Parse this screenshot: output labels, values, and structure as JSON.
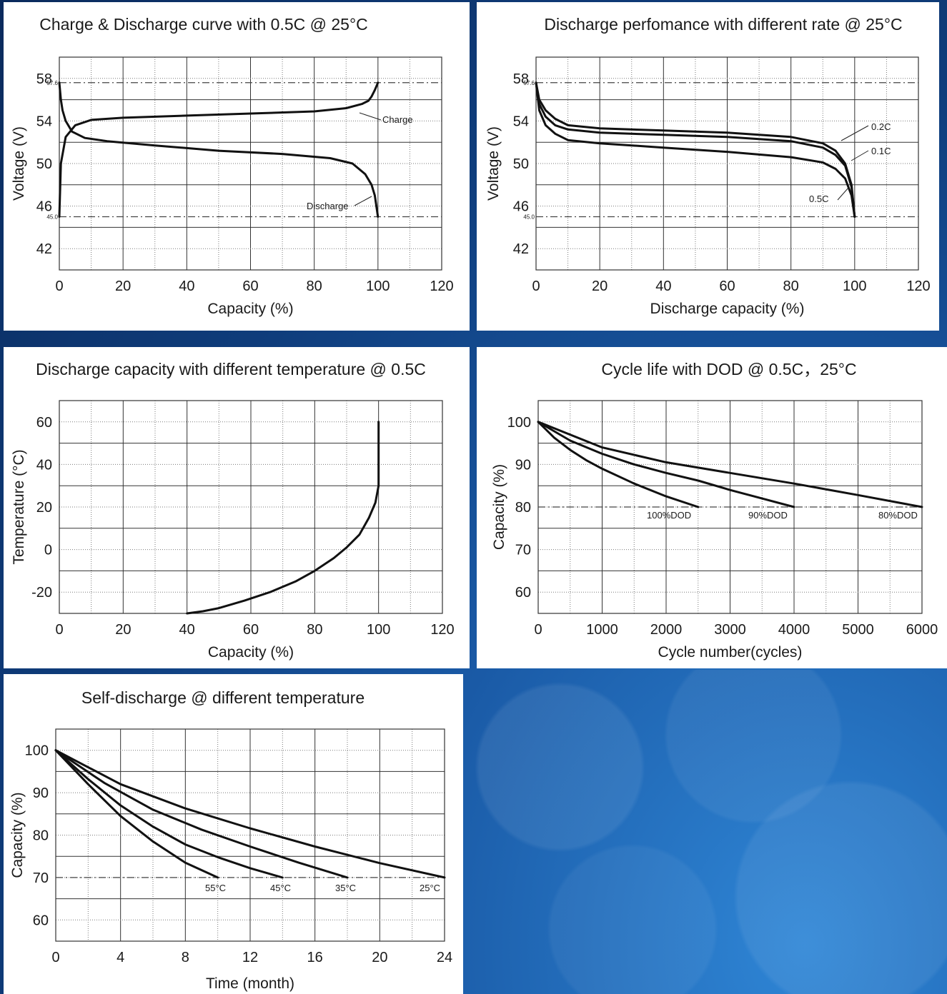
{
  "chart_data": [
    {
      "type": "line",
      "title": "Charge & Discharge curve with 0.5C @ 25°C",
      "xlabel": "Capacity (%)",
      "ylabel": "Voltage (V)",
      "xlim": [
        0,
        120
      ],
      "ylim": [
        40,
        60
      ],
      "x_ticks": [
        "0",
        "20",
        "40",
        "60",
        "80",
        "100",
        "120"
      ],
      "y_ticks": [
        "58",
        "54",
        "50",
        "46",
        "42"
      ],
      "y_tick_values": [
        58,
        54,
        50,
        46,
        42
      ],
      "ref_lines": [
        {
          "value": 57.6,
          "label": "57.6"
        },
        {
          "value": 45.0,
          "label": "45.0"
        }
      ],
      "grid": true,
      "series": [
        {
          "name": "Charge",
          "x": [
            0,
            0.5,
            2,
            5,
            10,
            20,
            40,
            60,
            80,
            90,
            95,
            97,
            98,
            99,
            100
          ],
          "y": [
            45,
            50,
            52.5,
            53.6,
            54.1,
            54.3,
            54.5,
            54.7,
            54.9,
            55.2,
            55.6,
            55.9,
            56.3,
            56.9,
            57.6
          ]
        },
        {
          "name": "Discharge",
          "x": [
            0,
            0.5,
            1,
            2,
            4,
            8,
            15,
            30,
            50,
            70,
            85,
            92,
            96,
            98,
            99,
            100
          ],
          "y": [
            57.6,
            56,
            55,
            54,
            53,
            52.4,
            52.1,
            51.7,
            51.2,
            50.9,
            50.5,
            50.0,
            49,
            48,
            47,
            45
          ]
        }
      ],
      "annotations": [
        "Charge",
        "Discharge"
      ]
    },
    {
      "type": "line",
      "title": "Discharge perfomance with different rate @ 25°C",
      "xlabel": "Discharge capacity (%)",
      "ylabel": "Voltage (V)",
      "xlim": [
        0,
        120
      ],
      "ylim": [
        40,
        60
      ],
      "x_ticks": [
        "0",
        "20",
        "40",
        "60",
        "80",
        "100",
        "120"
      ],
      "y_ticks": [
        "58",
        "54",
        "50",
        "46",
        "42"
      ],
      "y_tick_values": [
        58,
        54,
        50,
        46,
        42
      ],
      "ref_lines": [
        {
          "value": 57.6,
          "label": "57.6"
        },
        {
          "value": 45.0,
          "label": "45.0"
        }
      ],
      "grid": true,
      "series": [
        {
          "name": "0.2C",
          "x": [
            0,
            1,
            3,
            6,
            10,
            20,
            40,
            60,
            80,
            90,
            94,
            97,
            99,
            100
          ],
          "y": [
            57.6,
            56,
            55,
            54.2,
            53.6,
            53.3,
            53.1,
            52.9,
            52.5,
            51.9,
            51.2,
            50,
            48,
            45
          ]
        },
        {
          "name": "0.1C",
          "x": [
            0,
            1,
            3,
            6,
            10,
            20,
            40,
            60,
            80,
            90,
            94,
            97,
            99,
            100
          ],
          "y": [
            57.6,
            55.6,
            54.4,
            53.6,
            53.2,
            52.9,
            52.7,
            52.5,
            52.1,
            51.5,
            50.8,
            49.8,
            47.8,
            45
          ]
        },
        {
          "name": "0.5C",
          "x": [
            0,
            1,
            3,
            6,
            10,
            20,
            40,
            60,
            80,
            90,
            94,
            97,
            99,
            100
          ],
          "y": [
            57.6,
            55,
            53.6,
            52.8,
            52.2,
            51.9,
            51.5,
            51.1,
            50.6,
            50.1,
            49.5,
            48.6,
            47,
            45
          ]
        }
      ],
      "annotations": [
        "0.2C",
        "0.1C",
        "0.5C"
      ]
    },
    {
      "type": "line",
      "title": "Discharge capacity with different temperature @ 0.5C",
      "xlabel": "Capacity (%)",
      "ylabel": "Temperature (°C)",
      "xlim": [
        0,
        120
      ],
      "ylim": [
        -30,
        70
      ],
      "x_ticks": [
        "0",
        "20",
        "40",
        "60",
        "80",
        "100",
        "120"
      ],
      "y_ticks": [
        "60",
        "40",
        "20",
        "0",
        "-20"
      ],
      "y_tick_values": [
        60,
        40,
        20,
        0,
        -20
      ],
      "grid": true,
      "series": [
        {
          "name": "",
          "x": [
            40,
            45,
            50,
            58,
            66,
            74,
            80,
            86,
            90,
            94,
            97,
            99,
            100,
            100,
            100
          ],
          "y": [
            -30,
            -29,
            -27.5,
            -24,
            -20,
            -15,
            -10,
            -4,
            1,
            7,
            15,
            22,
            30,
            45,
            60
          ]
        }
      ]
    },
    {
      "type": "line",
      "title": "Cycle life with DOD @ 0.5C，25°C",
      "xlabel": "Cycle number(cycles)",
      "ylabel": "Capacity (%)",
      "xlim": [
        0,
        6000
      ],
      "ylim": [
        55,
        105
      ],
      "x_ticks": [
        "0",
        "1000",
        "2000",
        "3000",
        "4000",
        "5000",
        "6000"
      ],
      "y_ticks": [
        "100",
        "90",
        "80",
        "70",
        "60"
      ],
      "y_tick_values": [
        100,
        90,
        80,
        70,
        60
      ],
      "ref_lines": [
        {
          "value": 80,
          "label": ""
        }
      ],
      "grid": true,
      "series": [
        {
          "name": "100%DOD",
          "x": [
            0,
            250,
            500,
            750,
            1000,
            1500,
            2000,
            2500
          ],
          "y": [
            100,
            96.3,
            93.4,
            91,
            89,
            85.5,
            82.5,
            80
          ]
        },
        {
          "name": "90%DOD",
          "x": [
            0,
            500,
            1000,
            1500,
            2000,
            2500,
            3000,
            3500,
            4000
          ],
          "y": [
            100,
            95.6,
            92.5,
            90,
            88,
            86.2,
            84,
            82,
            80
          ]
        },
        {
          "name": "80%DOD",
          "x": [
            0,
            1000,
            2000,
            3000,
            4000,
            5000,
            6000
          ],
          "y": [
            100,
            94,
            90.5,
            88,
            85.5,
            82.8,
            80
          ]
        }
      ],
      "annotations": [
        "100%DOD",
        "90%DOD",
        "80%DOD"
      ]
    },
    {
      "type": "line",
      "title": "Self-discharge @ different temperature",
      "xlabel": "Time (month)",
      "ylabel": "Capacity (%)",
      "xlim": [
        0,
        24
      ],
      "ylim": [
        55,
        105
      ],
      "x_ticks": [
        "0",
        "4",
        "8",
        "12",
        "16",
        "20",
        "24"
      ],
      "y_ticks": [
        "100",
        "90",
        "80",
        "70",
        "60"
      ],
      "y_tick_values": [
        100,
        90,
        80,
        70,
        60
      ],
      "ref_lines": [
        {
          "value": 70,
          "label": ""
        }
      ],
      "grid": true,
      "series": [
        {
          "name": "55°C",
          "x": [
            0,
            2,
            4,
            6,
            8,
            10
          ],
          "y": [
            100,
            92,
            84.5,
            78.5,
            73.5,
            70
          ]
        },
        {
          "name": "45°C",
          "x": [
            0,
            2,
            4,
            6,
            8,
            10,
            12,
            14
          ],
          "y": [
            100,
            93.2,
            87,
            82,
            77.8,
            74.8,
            72.2,
            70
          ]
        },
        {
          "name": "35°C",
          "x": [
            0,
            3,
            6,
            9,
            12,
            15,
            18
          ],
          "y": [
            100,
            92.3,
            86,
            81.3,
            77.3,
            73.5,
            70
          ]
        },
        {
          "name": "25°C",
          "x": [
            0,
            4,
            8,
            12,
            16,
            20,
            24
          ],
          "y": [
            100,
            92,
            86.3,
            81.6,
            77.3,
            73.4,
            70
          ]
        }
      ],
      "annotations": [
        "55°C",
        "45°C",
        "35°C",
        "25°C"
      ]
    }
  ]
}
